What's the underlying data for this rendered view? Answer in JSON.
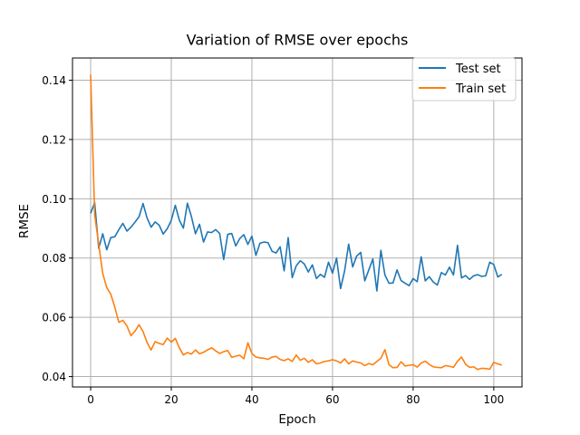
{
  "chart_data": {
    "type": "line",
    "title": "Variation of RMSE over epochs",
    "xlabel": "Epoch",
    "ylabel": "RMSE",
    "xlim": [
      -4.5,
      107
    ],
    "ylim": [
      0.0365,
      0.1475
    ],
    "xticks": [
      0,
      20,
      40,
      60,
      80,
      100
    ],
    "yticks": [
      0.04,
      0.06,
      0.08,
      0.1,
      0.12,
      0.14
    ],
    "grid": true,
    "legend_position": "top-right",
    "series": [
      {
        "name": "Test set",
        "color": "#1f77b4",
        "values": [
          0.0951,
          0.0987,
          0.0833,
          0.0882,
          0.0828,
          0.0869,
          0.0872,
          0.0896,
          0.0917,
          0.0891,
          0.0904,
          0.0921,
          0.0939,
          0.0984,
          0.0935,
          0.0904,
          0.0922,
          0.0911,
          0.0881,
          0.0899,
          0.0927,
          0.0978,
          0.0928,
          0.0901,
          0.0985,
          0.094,
          0.0882,
          0.0914,
          0.0854,
          0.0888,
          0.0886,
          0.0896,
          0.0883,
          0.0795,
          0.088,
          0.0883,
          0.0841,
          0.0866,
          0.0879,
          0.0846,
          0.0874,
          0.0809,
          0.085,
          0.0854,
          0.0852,
          0.0823,
          0.0817,
          0.0838,
          0.0757,
          0.0869,
          0.0734,
          0.0774,
          0.0791,
          0.078,
          0.0753,
          0.0777,
          0.0731,
          0.0745,
          0.0735,
          0.0786,
          0.0749,
          0.08,
          0.0697,
          0.0757,
          0.0847,
          0.077,
          0.0807,
          0.0819,
          0.0723,
          0.076,
          0.0797,
          0.0689,
          0.0826,
          0.0743,
          0.0715,
          0.0716,
          0.076,
          0.0724,
          0.0715,
          0.0707,
          0.0731,
          0.072,
          0.0804,
          0.0723,
          0.0737,
          0.0719,
          0.0709,
          0.0751,
          0.0743,
          0.0769,
          0.0743,
          0.0843,
          0.0733,
          0.0741,
          0.0728,
          0.074,
          0.0744,
          0.0738,
          0.074,
          0.0786,
          0.0778,
          0.0736,
          0.0745
        ]
      },
      {
        "name": "Train set",
        "color": "#ff7f0e",
        "values": [
          0.1419,
          0.0945,
          0.0847,
          0.0748,
          0.07,
          0.0678,
          0.0634,
          0.0583,
          0.059,
          0.0571,
          0.0538,
          0.0553,
          0.0575,
          0.0552,
          0.0515,
          0.049,
          0.0518,
          0.0512,
          0.0508,
          0.053,
          0.0516,
          0.0529,
          0.0497,
          0.0473,
          0.0481,
          0.0476,
          0.049,
          0.0477,
          0.0482,
          0.049,
          0.0497,
          0.0487,
          0.0478,
          0.0484,
          0.0488,
          0.0465,
          0.0469,
          0.0472,
          0.046,
          0.0514,
          0.0478,
          0.0466,
          0.0463,
          0.0462,
          0.0458,
          0.0466,
          0.0468,
          0.0458,
          0.0454,
          0.046,
          0.0451,
          0.0473,
          0.0455,
          0.0462,
          0.0448,
          0.0457,
          0.0443,
          0.0446,
          0.0451,
          0.0453,
          0.0457,
          0.0453,
          0.0446,
          0.046,
          0.0443,
          0.0453,
          0.0449,
          0.0446,
          0.0437,
          0.0444,
          0.044,
          0.0451,
          0.0462,
          0.0491,
          0.044,
          0.043,
          0.0431,
          0.045,
          0.0436,
          0.0438,
          0.044,
          0.0432,
          0.0446,
          0.0452,
          0.0441,
          0.0433,
          0.0431,
          0.043,
          0.0437,
          0.0435,
          0.0431,
          0.0452,
          0.0466,
          0.0442,
          0.0431,
          0.0433,
          0.0424,
          0.0428,
          0.0427,
          0.0425,
          0.0448,
          0.0443,
          0.0439
        ]
      }
    ]
  }
}
